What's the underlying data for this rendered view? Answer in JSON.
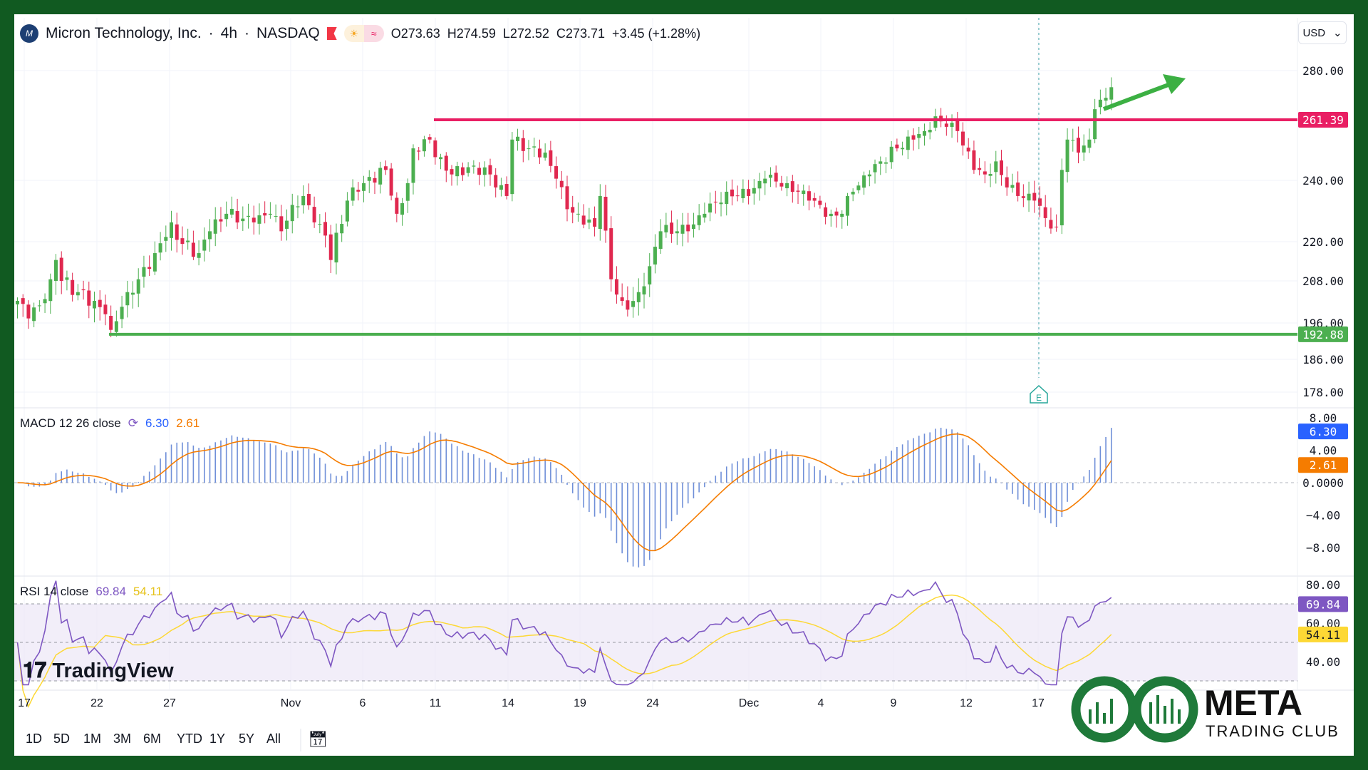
{
  "header": {
    "symbol": "Micron Technology, Inc.",
    "interval": "4h",
    "exchange": "NASDAQ",
    "open": "O273.63",
    "high": "H274.59",
    "low": "L272.52",
    "close": "C273.71",
    "change": "+3.45 (+1.28%)"
  },
  "currency": "USD",
  "macd_label": "MACD 12 26 close",
  "macd_value": "6.30",
  "signal_value": "2.61",
  "rsi_label": "RSI 14 close",
  "rsi_value": "69.84",
  "rsi_ma_value": "54.11",
  "earnings_marker": "E",
  "time_labels": [
    "17",
    "22",
    "27",
    "Nov",
    "6",
    "11",
    "14",
    "19",
    "24",
    "Dec",
    "4",
    "9",
    "12",
    "17"
  ],
  "range_buttons": [
    "1D",
    "5D",
    "1M",
    "3M",
    "6M",
    "YTD",
    "1Y",
    "5Y",
    "All"
  ],
  "branding": {
    "tradingview": "TradingView",
    "meta": "META",
    "meta_sub": "TRADING CLUB"
  },
  "colors": {
    "up": "#4caf50",
    "down": "#e0284f",
    "resistance": "#e91e63",
    "support": "#4caf50",
    "macd": "#2962ff",
    "signal": "#f57c00",
    "rsi": "#7e57c2",
    "rsi_ma": "#fdd835"
  },
  "chart_data": {
    "type": "candlestick",
    "price_ticks": [
      280,
      240,
      220,
      208,
      196,
      186,
      178
    ],
    "resistance": 261.39,
    "support": 192.88,
    "macd_ticks": [
      8,
      4,
      0,
      -4,
      -8
    ],
    "rsi_ticks": [
      80,
      60,
      40
    ],
    "close_waypoints": [
      [
        0,
        202.3
      ],
      [
        2,
        197.3
      ],
      [
        4,
        201
      ],
      [
        6,
        208.5
      ],
      [
        7,
        214.4
      ],
      [
        8,
        208
      ],
      [
        11,
        204.8
      ],
      [
        14,
        202.3
      ],
      [
        16,
        198.5
      ],
      [
        17,
        194.1
      ],
      [
        20,
        204.8
      ],
      [
        22,
        208.5
      ],
      [
        25,
        216.5
      ],
      [
        28,
        226.3
      ],
      [
        29,
        220.6
      ],
      [
        33,
        216.5
      ],
      [
        35,
        223.4
      ],
      [
        38,
        229.1
      ],
      [
        43,
        226.3
      ],
      [
        46,
        229.1
      ],
      [
        48,
        223.4
      ],
      [
        50,
        232
      ],
      [
        52,
        234.9
      ],
      [
        54,
        226.3
      ],
      [
        56,
        222
      ],
      [
        57,
        214.4
      ],
      [
        60,
        233.4
      ],
      [
        61,
        237.7
      ],
      [
        63,
        239.1
      ],
      [
        67,
        243.7
      ],
      [
        69,
        229.1
      ],
      [
        71,
        239.1
      ],
      [
        72,
        251.3
      ],
      [
        75,
        254.4
      ],
      [
        76,
        248.2
      ],
      [
        79,
        242.1
      ],
      [
        83,
        245.2
      ],
      [
        86,
        242.1
      ],
      [
        87,
        237.7
      ],
      [
        89,
        234.9
      ],
      [
        90,
        254.4
      ],
      [
        93,
        251.3
      ],
      [
        96,
        249.8
      ],
      [
        98,
        240.6
      ],
      [
        100,
        230.6
      ],
      [
        102,
        229.1
      ],
      [
        105,
        224.9
      ],
      [
        106,
        234.9
      ],
      [
        108,
        208.5
      ],
      [
        110,
        202.3
      ],
      [
        111,
        199.8
      ],
      [
        113,
        204.8
      ],
      [
        115,
        212.5
      ],
      [
        117,
        223.4
      ],
      [
        120,
        223.4
      ],
      [
        122,
        223.4
      ],
      [
        125,
        229.1
      ],
      [
        129,
        236.3
      ],
      [
        133,
        234.9
      ],
      [
        136,
        240.6
      ],
      [
        140,
        239.1
      ],
      [
        142,
        236.3
      ],
      [
        144,
        233.4
      ],
      [
        148,
        229.1
      ],
      [
        150,
        229.1
      ],
      [
        152,
        236.3
      ],
      [
        155,
        242.1
      ],
      [
        157,
        246.7
      ],
      [
        160,
        251.3
      ],
      [
        163,
        254.4
      ],
      [
        165,
        257.4
      ],
      [
        167,
        262.7
      ],
      [
        169,
        258.9
      ],
      [
        171,
        257.4
      ],
      [
        174,
        243.7
      ],
      [
        176,
        242.1
      ],
      [
        178,
        246.7
      ],
      [
        180,
        237.7
      ],
      [
        182,
        234.9
      ],
      [
        185,
        233.4
      ],
      [
        187,
        227.7
      ],
      [
        189,
        224.9
      ],
      [
        190,
        243.7
      ],
      [
        191,
        254.4
      ],
      [
        193,
        249.8
      ],
      [
        195,
        254.4
      ],
      [
        196,
        265.4
      ],
      [
        198,
        269.7
      ],
      [
        199,
        273.71
      ]
    ]
  }
}
